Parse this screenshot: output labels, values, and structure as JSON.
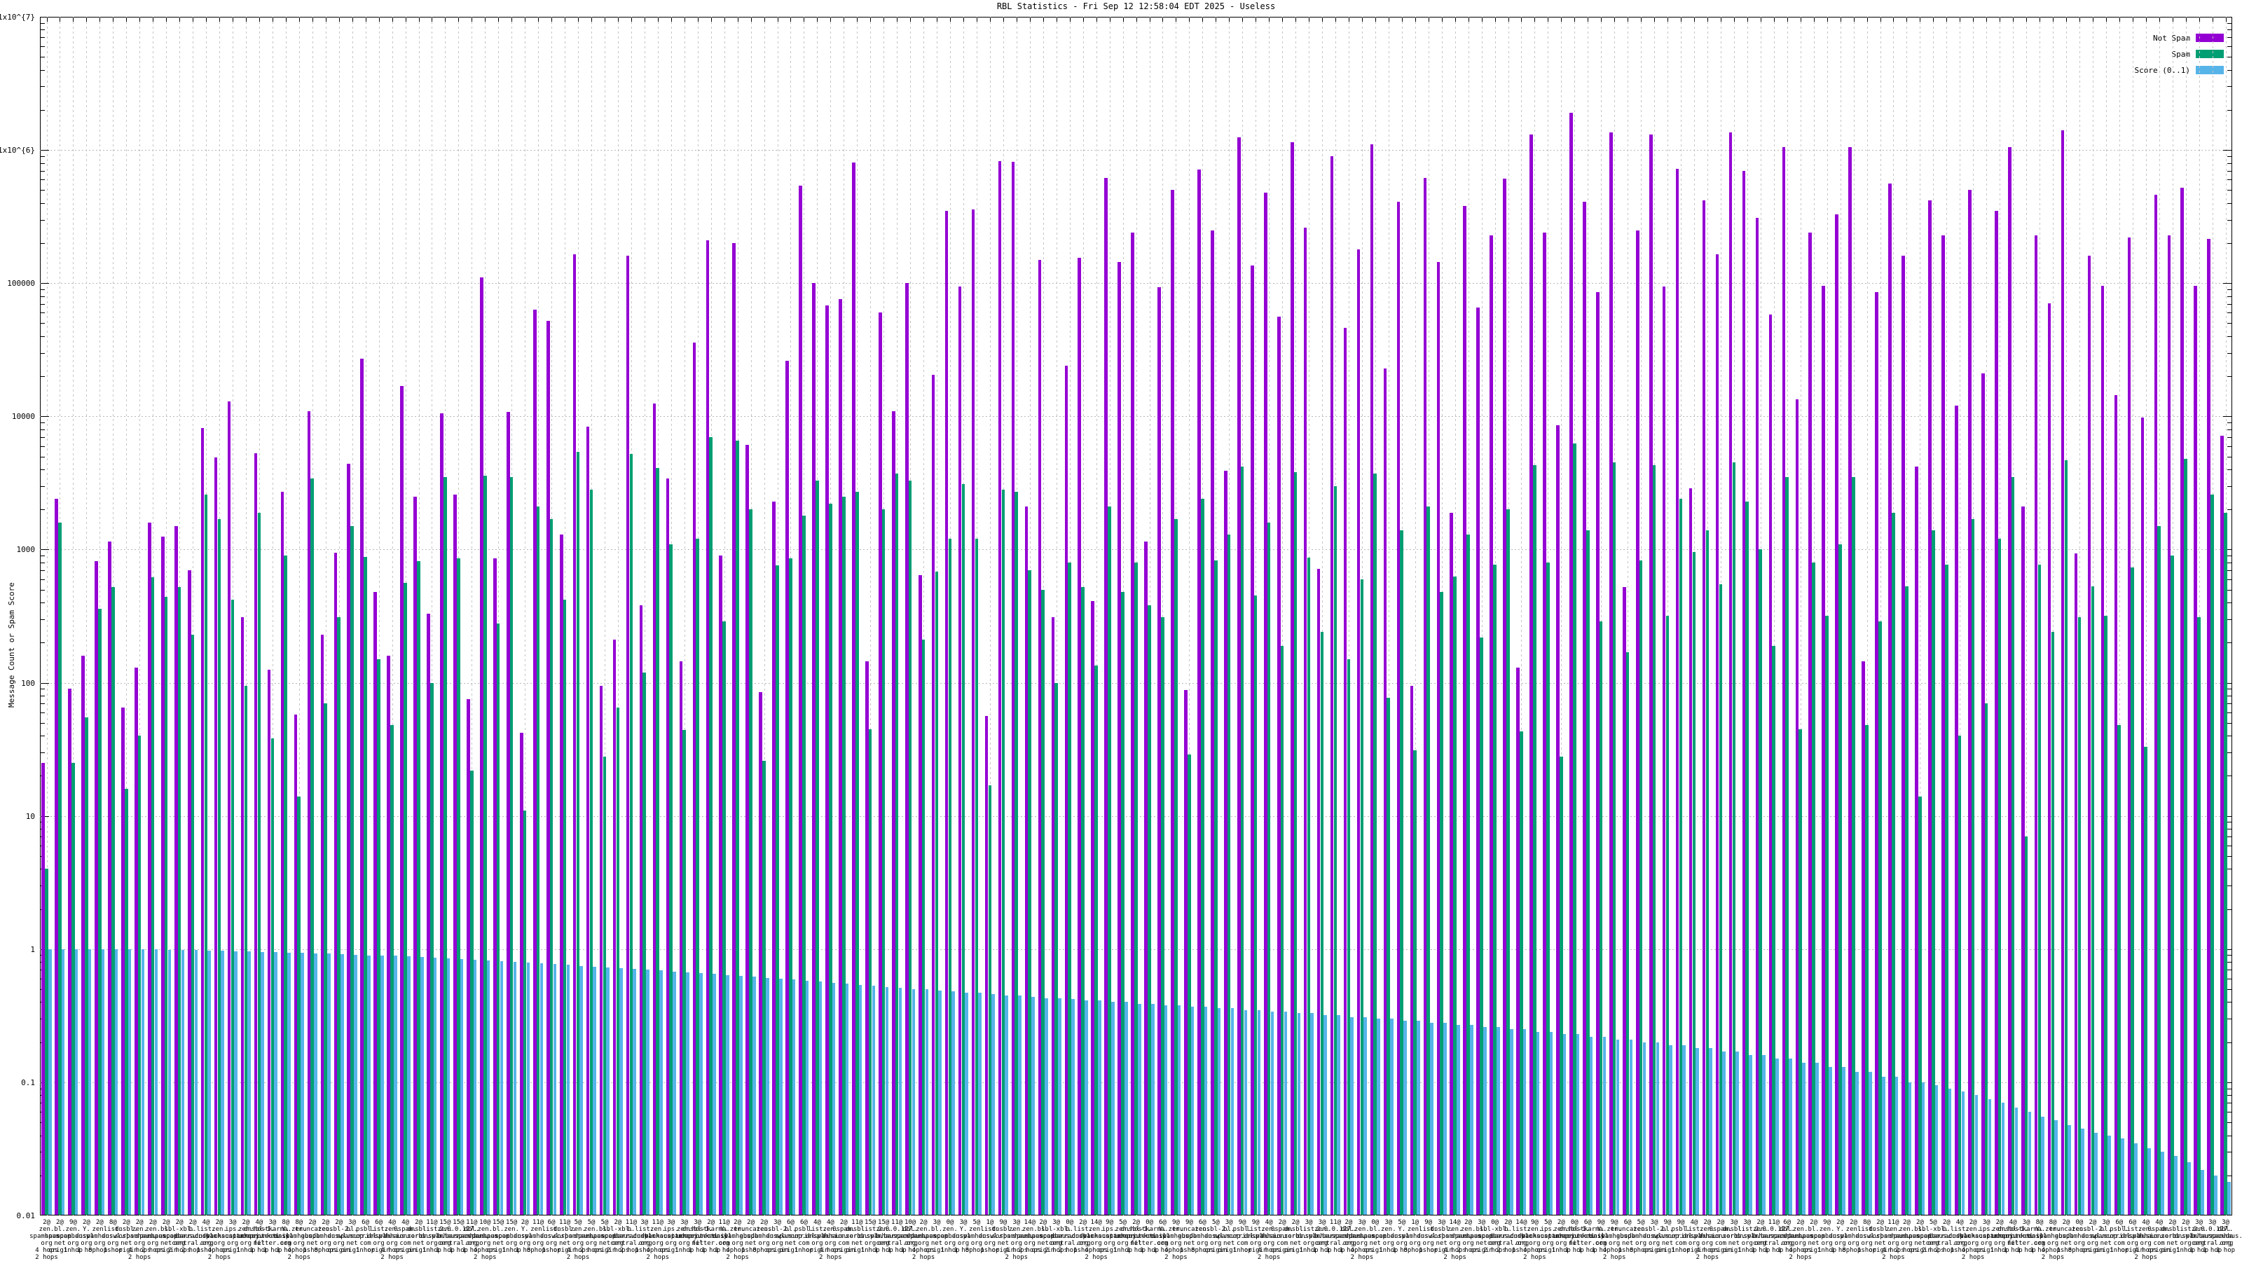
{
  "title": "RBL Statistics - Fri Sep 12 12:58:04 EDT 2025 - Useless",
  "y_axis": {
    "label": "Message Count or Spam Score",
    "ticks": [
      {
        "label": "1x10^{7}",
        "value": 10000000
      },
      {
        "label": "1x10^{6}",
        "value": 1000000
      },
      {
        "label": "100000",
        "value": 100000
      },
      {
        "label": "10000",
        "value": 10000
      },
      {
        "label": "1000",
        "value": 1000
      },
      {
        "label": "100",
        "value": 100
      },
      {
        "label": "10",
        "value": 10
      },
      {
        "label": "1",
        "value": 1
      },
      {
        "label": "0.1",
        "value": 0.1
      },
      {
        "label": "0.01",
        "value": 0.01
      }
    ]
  },
  "legend": {
    "items": [
      {
        "label": "Not Spam",
        "color": "#9400d3"
      },
      {
        "label": "Spam",
        "color": "#009e73"
      },
      {
        "label": "Score (0..1)",
        "color": "#56b4e9"
      }
    ]
  },
  "colors": {
    "not_spam": "#9400d3",
    "spam": "#009e73",
    "score": "#56b4e9",
    "grid": "#b9b9b9",
    "border": "#000000",
    "background": "#ffffff"
  },
  "chart_data": {
    "type": "bar",
    "scale": "log-y",
    "ylim": [
      0.01,
      10000000
    ],
    "grid": true,
    "legend_position": "top-right",
    "title": "RBL Statistics - Fri Sep 12 12:58:04 EDT 2025 - Useless",
    "ylabel": "Message Count or Spam Score",
    "hosts": [
      [
        "zen.",
        "spamhaus.",
        "org",
        "4 hops",
        "2 hops"
      ],
      [
        "bl.",
        "spamcop.",
        "net",
        "origin"
      ],
      [
        "zen.",
        "spamhaus.",
        "org",
        "1 hop"
      ],
      [
        "zen.",
        "spamhaus.",
        "org",
        "8 hops"
      ],
      [
        "zen.",
        "spamhaus.",
        "org",
        "2 hops"
      ],
      [
        "Y.",
        "dnswl.",
        "org",
        "1 hop"
      ],
      [
        "dnsbl.",
        "sorbs.",
        "net",
        "origin"
      ],
      [
        "dnsbl-1.",
        "uceprotect.",
        "net",
        "1 hop"
      ],
      [
        "psbl.",
        "surriel.",
        "com",
        "1 hop"
      ],
      [
        "b.",
        "barracuda",
        "central.org",
        "2 hops"
      ],
      [
        "list.",
        "dnswl.",
        "org",
        "origin"
      ],
      [
        "list.",
        "dnswl.",
        "org",
        "1 hop"
      ],
      [
        "hostkarma.",
        "junkemail",
        "filter.com",
        "1 hop"
      ],
      [
        "ips.",
        "backscatterer.",
        "org",
        "origin"
      ],
      [
        "truncate.",
        "gbudb.",
        "net",
        "1 hop"
      ],
      [
        "0spam.",
        "fusionzero.",
        "com",
        "origin"
      ],
      [
        "2.0.0.127.",
        "b.barracuda",
        "central.org",
        "1 hop"
      ],
      [
        "sbl-xbl.",
        "spamhaus.",
        "org",
        "2 hops"
      ],
      [
        "dbl.",
        "spamhaus.",
        "org",
        "1 hop"
      ],
      [
        "nsbl-2.",
        "dnswl.",
        "org",
        "origin"
      ]
    ],
    "groups": {
      "count_labels": [
        "2@",
        "2@",
        "9@",
        "2@",
        "2@",
        "8@",
        "2@",
        "2@",
        "2@",
        "2@",
        "2@",
        "2@",
        "4@",
        "2@",
        "3@",
        "2@",
        "4@",
        "3@",
        "8@",
        "8@",
        "2@",
        "2@",
        "2@",
        "3@",
        "6@",
        "6@",
        "4@",
        "4@",
        "2@",
        "11@",
        "15@",
        "15@",
        "11@",
        "10@",
        "15@",
        "15@",
        "2@",
        "11@",
        "6@",
        "11@",
        "5@",
        "5@",
        "5@",
        "2@",
        "11@",
        "3@",
        "11@",
        "3@",
        "3@",
        "3@",
        "2@",
        "11@",
        "2@",
        "2@",
        "2@",
        "3@",
        "6@",
        "6@",
        "4@",
        "4@",
        "2@",
        "11@",
        "15@",
        "15@",
        "11@",
        "10@",
        "2@",
        "3@",
        "0@",
        "3@",
        "5@",
        "1@",
        "9@",
        "3@",
        "14@",
        "2@",
        "3@",
        "0@",
        "2@",
        "14@",
        "9@",
        "5@",
        "2@",
        "0@",
        "6@",
        "9@",
        "9@",
        "6@",
        "5@",
        "3@",
        "9@",
        "9@",
        "4@",
        "2@",
        "2@",
        "3@",
        "3@",
        "11@",
        "2@",
        "3@",
        "0@",
        "3@",
        "5@",
        "1@",
        "9@",
        "3@",
        "14@",
        "2@",
        "3@",
        "0@",
        "2@",
        "14@",
        "9@",
        "5@",
        "2@",
        "0@",
        "6@",
        "9@",
        "9@",
        "6@",
        "5@",
        "3@",
        "9@",
        "9@",
        "4@",
        "2@",
        "2@",
        "3@",
        "3@",
        "2@",
        "11@",
        "6@",
        "2@",
        "2@",
        "9@",
        "2@",
        "2@",
        "8@",
        "2@",
        "11@",
        "2@",
        "2@",
        "5@",
        "2@",
        "4@",
        "2@",
        "3@",
        "2@",
        "4@",
        "3@",
        "8@",
        "8@",
        "2@",
        "0@",
        "2@",
        "3@",
        "6@",
        "6@",
        "4@",
        "4@",
        "2@",
        "2@",
        "3@",
        "3@",
        "3@"
      ],
      "host_index": [
        0,
        1,
        2,
        5,
        3,
        11,
        6,
        0,
        4,
        1,
        17,
        9,
        11,
        0,
        13,
        2,
        7,
        12,
        5,
        0,
        14,
        3,
        19,
        1,
        8,
        10,
        0,
        15,
        6,
        11,
        2,
        16,
        18,
        0,
        1,
        2,
        5,
        3,
        11,
        6,
        0,
        4,
        1,
        17,
        9,
        11,
        0,
        13,
        2,
        7,
        12,
        5,
        0,
        14,
        3,
        19,
        1,
        8,
        10,
        0,
        15,
        6,
        11,
        2,
        16,
        18,
        0,
        1,
        2,
        5,
        3,
        11,
        6,
        0,
        4,
        1,
        17,
        9,
        11,
        0,
        13,
        2,
        7,
        12,
        5,
        0,
        14,
        3,
        19,
        1,
        8,
        10,
        0,
        15,
        6,
        11,
        2,
        16,
        18,
        0,
        1,
        2,
        5,
        3,
        11,
        6,
        0,
        4,
        1,
        17,
        9,
        11,
        0,
        13,
        2,
        7,
        12,
        5,
        0,
        14,
        3,
        19,
        1,
        8,
        10,
        0,
        15,
        6,
        11,
        2,
        16,
        18,
        0,
        1,
        2,
        5,
        3,
        11,
        6,
        0,
        4,
        1,
        17,
        9,
        11,
        0,
        13,
        2,
        7,
        12,
        5,
        0,
        14,
        3,
        19,
        1,
        8,
        10,
        0,
        15,
        6,
        11,
        2,
        16,
        18
      ]
    },
    "series": [
      {
        "name": "Not Spam",
        "color": "#9400d3",
        "values": [
          25,
          2400,
          90,
          160,
          820,
          1150,
          65,
          130,
          1600,
          1250,
          1500,
          700,
          8200,
          4900,
          13000,
          310,
          5300,
          125,
          2700,
          58,
          11000,
          230,
          950,
          4400,
          27000,
          480,
          160,
          17000,
          2500,
          330,
          10500,
          2600,
          75,
          110000,
          860,
          10800,
          42,
          63000,
          52000,
          1300,
          165000,
          8400,
          95,
          210,
          160000,
          380,
          12500,
          3400,
          145,
          36000,
          210000,
          900,
          200000,
          6100,
          85,
          2300,
          26000,
          540000,
          100000,
          68000,
          76000,
          810000,
          145,
          60000,
          11000,
          100000,
          640,
          20500,
          350000,
          95000,
          360000,
          56,
          830000,
          820000,
          2100,
          150000,
          310,
          24000,
          155000,
          410,
          620000,
          145000,
          240000,
          1150,
          93000,
          500000,
          88,
          710000,
          250000,
          3900,
          1250000,
          135000,
          480000,
          56000,
          1150000,
          260000,
          720,
          900000,
          46000,
          180000,
          1100000,
          23000,
          410000,
          95,
          620000,
          145000,
          1900,
          380000,
          66000,
          230000,
          610000,
          130,
          1300000,
          240000,
          8600,
          1900000,
          410000,
          86000,
          1350000,
          520,
          250000,
          1300000,
          95000,
          720000,
          2900,
          420000,
          165000,
          1350000,
          700000,
          310000,
          58000,
          1050000,
          13500,
          240000,
          96000,
          330000,
          1050000,
          145,
          86000,
          560000,
          160000,
          4200,
          420000,
          230000,
          12000,
          500000,
          21000,
          350000,
          1050000,
          2100,
          230000,
          71000,
          1400000,
          940,
          160000,
          96000,
          14500,
          220000,
          9800,
          460000,
          230000,
          520000,
          96000,
          215000,
          7200
        ]
      },
      {
        "name": "Spam",
        "color": "#009e73",
        "values": [
          4,
          1600,
          25,
          55,
          360,
          520,
          16,
          40,
          620,
          440,
          520,
          230,
          2600,
          1700,
          420,
          95,
          1900,
          38,
          900,
          14,
          3400,
          70,
          310,
          1500,
          880,
          150,
          48,
          560,
          820,
          100,
          3500,
          860,
          22,
          3600,
          280,
          3500,
          11,
          2100,
          1700,
          420,
          5400,
          2800,
          28,
          65,
          5200,
          120,
          4100,
          1100,
          44,
          1200,
          7000,
          290,
          6600,
          2000,
          26,
          760,
          860,
          1800,
          3300,
          2200,
          2500,
          2700,
          45,
          2000,
          3700,
          3300,
          210,
          680,
          1200,
          3100,
          1200,
          17,
          2800,
          2700,
          700,
          500,
          100,
          800,
          520,
          135,
          2100,
          480,
          800,
          380,
          310,
          1700,
          29,
          2400,
          830,
          1300,
          4200,
          450,
          1600,
          190,
          3800,
          870,
          240,
          3000,
          150,
          600,
          3700,
          77,
          1400,
          31,
          2100,
          480,
          630,
          1300,
          220,
          770,
          2000,
          43,
          4300,
          800,
          28,
          6300,
          1400,
          290,
          4500,
          170,
          830,
          4300,
          320,
          2400,
          960,
          1400,
          550,
          4500,
          2300,
          1000,
          190,
          3500,
          45,
          800,
          320,
          1100,
          3500,
          48,
          290,
          1900,
          530,
          14,
          1400,
          770,
          40,
          1700,
          70,
          1200,
          3500,
          7,
          770,
          240,
          4700,
          310,
          530,
          320,
          48,
          730,
          33,
          1500,
          900,
          4800,
          310,
          2600,
          1900
        ]
      },
      {
        "name": "Score (0..1)",
        "color": "#56b4e9",
        "values": [
          1.0,
          1.0,
          1.0,
          1.0,
          1.0,
          1.0,
          1.0,
          1.0,
          1.0,
          0.99,
          0.98,
          0.98,
          0.97,
          0.97,
          0.96,
          0.96,
          0.95,
          0.95,
          0.94,
          0.94,
          0.93,
          0.93,
          0.92,
          0.91,
          0.9,
          0.9,
          0.89,
          0.88,
          0.87,
          0.86,
          0.85,
          0.84,
          0.83,
          0.82,
          0.81,
          0.8,
          0.79,
          0.78,
          0.77,
          0.76,
          0.75,
          0.74,
          0.73,
          0.72,
          0.71,
          0.7,
          0.69,
          0.68,
          0.67,
          0.66,
          0.65,
          0.64,
          0.63,
          0.62,
          0.61,
          0.6,
          0.59,
          0.58,
          0.57,
          0.56,
          0.55,
          0.54,
          0.53,
          0.52,
          0.51,
          0.5,
          0.5,
          0.49,
          0.48,
          0.47,
          0.47,
          0.46,
          0.45,
          0.45,
          0.44,
          0.43,
          0.43,
          0.42,
          0.41,
          0.41,
          0.4,
          0.4,
          0.39,
          0.39,
          0.38,
          0.38,
          0.37,
          0.37,
          0.36,
          0.36,
          0.35,
          0.35,
          0.34,
          0.34,
          0.33,
          0.33,
          0.32,
          0.32,
          0.31,
          0.31,
          0.3,
          0.3,
          0.29,
          0.29,
          0.28,
          0.28,
          0.27,
          0.27,
          0.26,
          0.26,
          0.25,
          0.25,
          0.24,
          0.24,
          0.23,
          0.23,
          0.22,
          0.22,
          0.21,
          0.21,
          0.2,
          0.2,
          0.19,
          0.19,
          0.18,
          0.18,
          0.17,
          0.17,
          0.16,
          0.16,
          0.15,
          0.15,
          0.14,
          0.14,
          0.13,
          0.13,
          0.12,
          0.12,
          0.11,
          0.11,
          0.1,
          0.1,
          0.095,
          0.09,
          0.085,
          0.08,
          0.075,
          0.07,
          0.065,
          0.06,
          0.055,
          0.052,
          0.048,
          0.045,
          0.042,
          0.04,
          0.038,
          0.035,
          0.032,
          0.03,
          0.028,
          0.025,
          0.022,
          0.02,
          0.018
        ]
      }
    ]
  }
}
